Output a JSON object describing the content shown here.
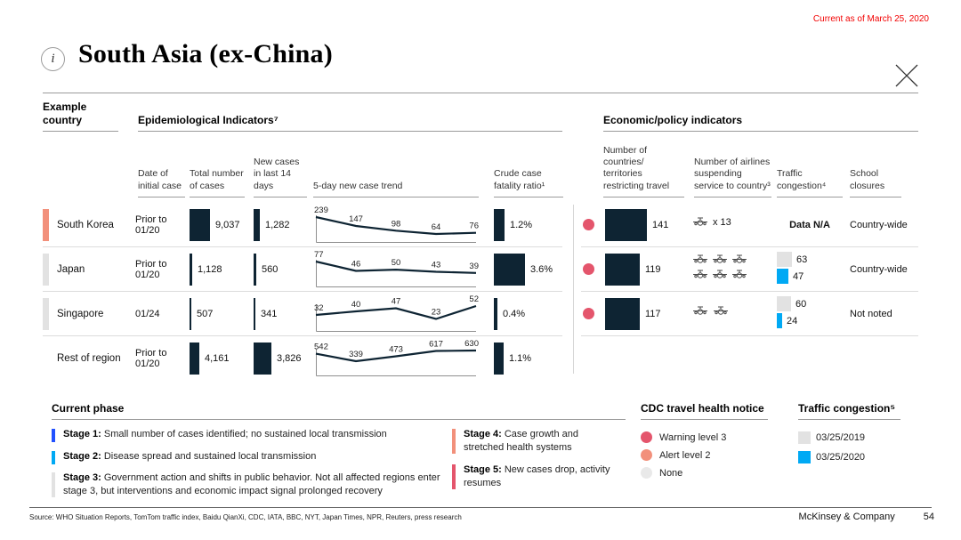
{
  "header": {
    "current_as_of": "Current as of March 25, 2020",
    "title": "South Asia (ex-China)",
    "info_icon_glyph": "i"
  },
  "colors": {
    "navy": "#0e2433",
    "crimson": "#e4556c",
    "salmon": "#f2907b",
    "light_gray": "#e2e2e2",
    "pale_gray": "#e9e9e9",
    "cyan": "#00a9f4",
    "royal_blue": "#2251ff",
    "red_text": "#f20000"
  },
  "table": {
    "group_headers": {
      "example_country": "Example country",
      "epidemiological": "Epidemiological Indicators⁷",
      "economic": "Economic/policy indicators"
    },
    "columns": {
      "date_initial": "Date of initial case",
      "total_cases": "Total number of cases",
      "new_cases": "New cases in last 14 days",
      "trend": "5-day new case trend",
      "cfr": "Crude case fatality ratio¹",
      "restricting": "Number of countries/ territories restricting travel",
      "airlines": "Number of airlines suspending service to country³",
      "traffic": "Traffic congestion⁴",
      "school": "School closures"
    },
    "rows": [
      {
        "country": "South Korea",
        "stage": "salmon",
        "date_initial": "Prior to 01/20",
        "total_cases": 9037,
        "total_cases_label": "9,037",
        "new_cases": 1282,
        "new_cases_label": "1,282",
        "trend": [
          239,
          147,
          98,
          64,
          76
        ],
        "cfr": 1.2,
        "cfr_label": "1.2%",
        "economic": {
          "cdc_color": "crimson",
          "restricting": 141,
          "restricting_label": "141",
          "airline_planes": 1,
          "airline_note": "x 13",
          "traffic_na": "Data N/A",
          "school": "Country-wide"
        }
      },
      {
        "country": "Japan",
        "stage": "light_gray",
        "date_initial": "Prior to 01/20",
        "total_cases": 1128,
        "total_cases_label": "1,128",
        "new_cases": 560,
        "new_cases_label": "560",
        "trend": [
          77,
          46,
          50,
          43,
          39
        ],
        "cfr": 3.6,
        "cfr_label": "3.6%",
        "economic": {
          "cdc_color": "crimson",
          "restricting": 119,
          "restricting_label": "119",
          "airline_planes": 6,
          "airline_note": "",
          "traffic_2019": 63,
          "traffic_2019_label": "63",
          "traffic_2020": 47,
          "traffic_2020_label": "47",
          "school": "Country-wide"
        }
      },
      {
        "country": "Singapore",
        "stage": "light_gray",
        "date_initial": "01/24",
        "total_cases": 507,
        "total_cases_label": "507",
        "new_cases": 341,
        "new_cases_label": "341",
        "trend": [
          32,
          40,
          47,
          23,
          52
        ],
        "cfr": 0.4,
        "cfr_label": "0.4%",
        "economic": {
          "cdc_color": "crimson",
          "restricting": 117,
          "restricting_label": "117",
          "airline_planes": 2,
          "airline_note": "",
          "traffic_2019": 60,
          "traffic_2019_label": "60",
          "traffic_2020": 24,
          "traffic_2020_label": "24",
          "school": "Not noted"
        }
      },
      {
        "country": "Rest of region",
        "stage": null,
        "date_initial": "Prior to 01/20",
        "total_cases": 4161,
        "total_cases_label": "4,161",
        "new_cases": 3826,
        "new_cases_label": "3,826",
        "trend": [
          542,
          339,
          473,
          617,
          630
        ],
        "cfr": 1.1,
        "cfr_label": "1.1%",
        "economic": null
      }
    ]
  },
  "legend": {
    "current_phase": {
      "header": "Current phase",
      "stages": [
        {
          "label": "Stage 1:",
          "text": "Small number of cases identified; no sustained local transmission",
          "color": "royal_blue"
        },
        {
          "label": "Stage 2:",
          "text": "Disease spread and sustained local transmission",
          "color": "cyan"
        },
        {
          "label": "Stage 3:",
          "text": "Government action and shifts in public behavior. Not all affected regions enter stage 3, but interventions and economic impact signal prolonged recovery",
          "color": "light_gray"
        },
        {
          "label": "Stage 4:",
          "text": "Case growth and stretched health systems",
          "color": "salmon"
        },
        {
          "label": "Stage 5:",
          "text": "New cases drop, activity resumes",
          "color": "crimson"
        }
      ]
    },
    "cdc": {
      "header": "CDC travel health notice",
      "items": [
        {
          "label": "Warning level 3",
          "color": "crimson"
        },
        {
          "label": "Alert level 2",
          "color": "salmon"
        },
        {
          "label": "None",
          "color": "pale_gray"
        }
      ]
    },
    "traffic": {
      "header": "Traffic congestion⁵",
      "items": [
        {
          "label": "03/25/2019",
          "color": "light_gray"
        },
        {
          "label": "03/25/2020",
          "color": "cyan"
        }
      ]
    }
  },
  "footer": {
    "source": "Source: WHO Situation Reports, TomTom traffic index, Baidu QianXi, CDC, IATA, BBC, NYT, Japan Times, NPR, Reuters, press research",
    "brand": "McKinsey & Company",
    "page": "54"
  }
}
